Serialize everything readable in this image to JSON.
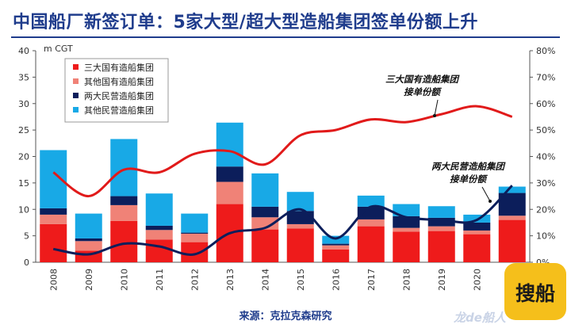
{
  "header": {
    "title": "中国船厂新签订单：5家大型/超大型造船集团签单份额上升"
  },
  "source": "来源：克拉克森研究",
  "logo": {
    "text": "搜船",
    "watermark": "龙de船人"
  },
  "chart_data": {
    "type": "bar",
    "stacked": true,
    "categories": [
      "2008",
      "2009",
      "2010",
      "2011",
      "2012",
      "2013",
      "2014",
      "2015",
      "2016",
      "2017",
      "2018",
      "2019",
      "2020",
      "2021"
    ],
    "left_axis_unit": "m CGT",
    "ylim": [
      0,
      40
    ],
    "y2lim": [
      0,
      80
    ],
    "y_ticks": [
      "0",
      "5",
      "10",
      "15",
      "20",
      "25",
      "30",
      "35",
      "40"
    ],
    "y2_ticks": [
      "0%",
      "10%",
      "20%",
      "30%",
      "40%",
      "50%",
      "60%",
      "70%",
      "80%"
    ],
    "series": [
      {
        "name": "三大国有造船集团",
        "color": "#ee1b1b",
        "values": [
          7.2,
          2.2,
          7.8,
          4.3,
          3.8,
          11.0,
          6.2,
          6.4,
          2.4,
          6.8,
          5.8,
          5.9,
          5.3,
          8.0
        ]
      },
      {
        "name": "其他国有造船集团",
        "color": "#f08277",
        "values": [
          1.8,
          1.8,
          3.0,
          1.8,
          1.6,
          4.2,
          2.3,
          0.8,
          0.8,
          1.3,
          0.7,
          0.9,
          0.7,
          0.8
        ]
      },
      {
        "name": "两大民营造船集团",
        "color": "#0c1e5b",
        "values": [
          1.2,
          0.5,
          1.7,
          0.8,
          0.2,
          2.9,
          2.0,
          2.5,
          0.3,
          2.4,
          2.2,
          1.6,
          1.5,
          4.3
        ]
      },
      {
        "name": "其他民营造船集团",
        "color": "#18a9e6",
        "values": [
          11.0,
          4.7,
          10.8,
          6.1,
          3.6,
          8.3,
          6.3,
          3.6,
          1.5,
          2.1,
          2.3,
          2.2,
          1.5,
          1.2
        ]
      }
    ],
    "lines": [
      {
        "name": "三大国有造船集团接单份额",
        "label_lines": [
          "三大国有造船集团",
          "接单份额"
        ],
        "color": "#e11a1a",
        "values": [
          34,
          25,
          35,
          34,
          41,
          42,
          37,
          48,
          50,
          54,
          53,
          56,
          59,
          55
        ]
      },
      {
        "name": "两大民营造船集团接单份额",
        "label_lines": [
          "两大民营造船集团",
          "接单份额"
        ],
        "color": "#0c1e5b",
        "values": [
          5,
          3,
          7,
          6,
          3,
          11,
          13,
          20,
          9,
          21,
          17,
          16,
          16,
          29
        ]
      }
    ],
    "legend_position": "top-left",
    "grid": false
  }
}
